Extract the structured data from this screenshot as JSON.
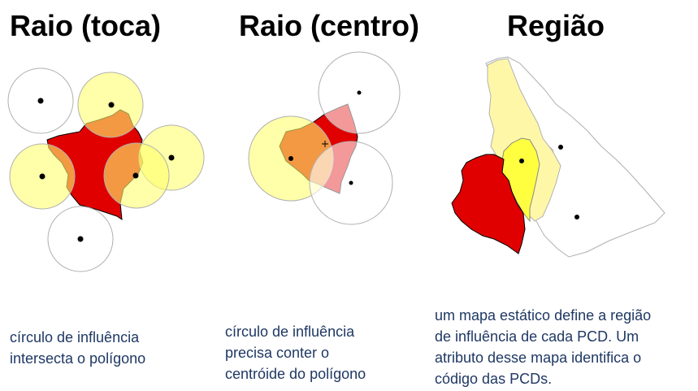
{
  "panels": [
    {
      "title": "Raio (toca)",
      "description": [
        "círculo de influência",
        "intersecta o polígono"
      ]
    },
    {
      "title": "Raio (centro)",
      "description": [
        "círculo de influência",
        "precisa conter o",
        "centróide do polígono"
      ]
    },
    {
      "title": "Região",
      "description": [
        "um mapa estático define a região",
        "de influência de cada PCD. Um",
        "atributo desse mapa identifica o",
        "código das PCDs."
      ]
    }
  ],
  "colors": {
    "polygon": "#e00000",
    "influence_active": "#ffff80",
    "influence_region": "#fff7a8",
    "circle_inactive": "#ffffff",
    "circle_stroke": "#a6a6a6",
    "text": "#1f3864"
  }
}
